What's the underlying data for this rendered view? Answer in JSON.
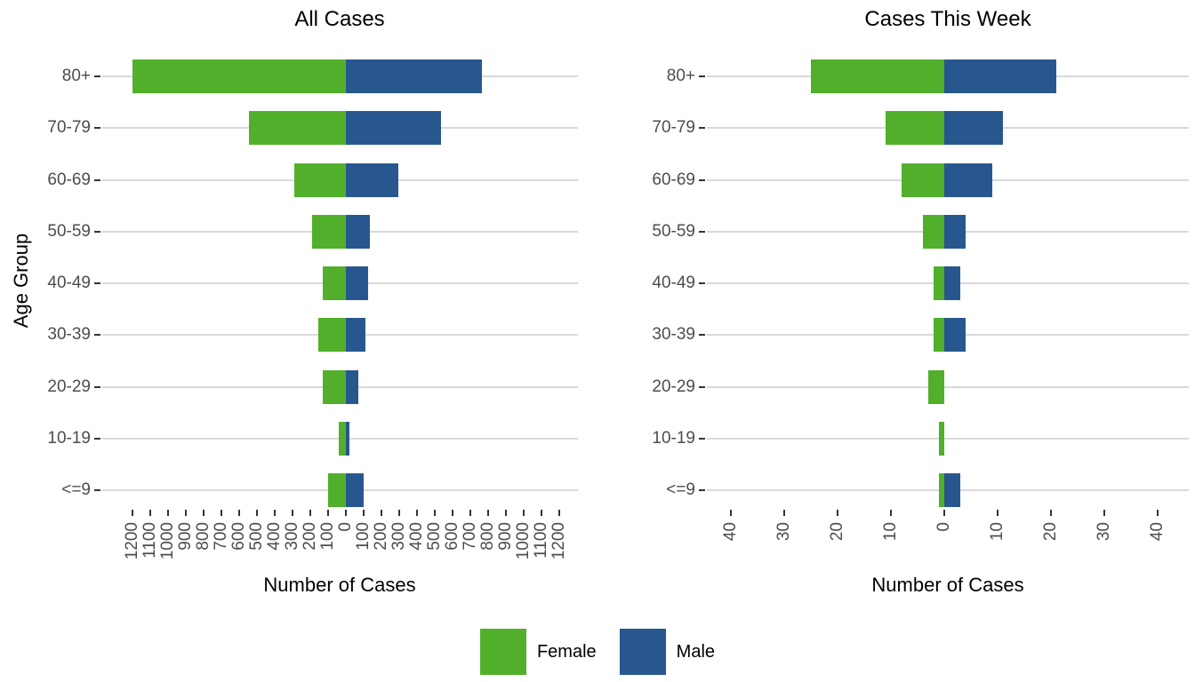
{
  "panel_titles": {
    "left": "All Cases",
    "right": "Cases This Week"
  },
  "axis_titles": {
    "x": "Number of Cases",
    "y": "Age Group"
  },
  "legend": {
    "position": "bottom",
    "items": [
      {
        "label": "Female",
        "color": "#52AF2C"
      },
      {
        "label": "Male",
        "color": "#28578F"
      }
    ]
  },
  "colors": {
    "female": "#52AF2C",
    "male": "#28578F",
    "gridline": "#D9D9D9",
    "tick_mark": "#333333",
    "axis_text": "#4D4D4D",
    "title_text": "#000000",
    "background": "#FFFFFF"
  },
  "chart_data": [
    {
      "type": "bar",
      "variant": "population-pyramid",
      "title": "All Cases",
      "xlabel": "Number of Cases",
      "ylabel": "Age Group",
      "grid": "horizontal-major-only",
      "legend_position": "bottom-shared",
      "categories": [
        "80+",
        "70-79",
        "60-69",
        "50-59",
        "40-49",
        "30-39",
        "20-29",
        "10-19",
        "<=9"
      ],
      "series": [
        {
          "name": "Female",
          "direction": "left",
          "values": [
            1200,
            545,
            290,
            190,
            130,
            155,
            130,
            40,
            100
          ]
        },
        {
          "name": "Male",
          "direction": "right",
          "values": [
            765,
            535,
            295,
            135,
            125,
            110,
            70,
            20,
            100
          ]
        }
      ],
      "xlim": [
        -1250,
        1250
      ],
      "x_tick_values": [
        -1200,
        -1100,
        -1000,
        -900,
        -800,
        -700,
        -600,
        -500,
        -400,
        -300,
        -200,
        -100,
        0,
        100,
        200,
        300,
        400,
        500,
        600,
        700,
        800,
        900,
        1000,
        1100,
        1200
      ],
      "x_tick_labels": [
        "1200",
        "1100",
        "1000",
        "900",
        "800",
        "700",
        "600",
        "500",
        "400",
        "300",
        "200",
        "100",
        "0",
        "100",
        "200",
        "300",
        "400",
        "500",
        "600",
        "700",
        "800",
        "900",
        "1000",
        "1100",
        "1200"
      ]
    },
    {
      "type": "bar",
      "variant": "population-pyramid",
      "title": "Cases This Week",
      "xlabel": "Number of Cases",
      "ylabel": "Age Group",
      "grid": "horizontal-major-only",
      "legend_position": "bottom-shared",
      "categories": [
        "80+",
        "70-79",
        "60-69",
        "50-59",
        "40-49",
        "30-39",
        "20-29",
        "10-19",
        "<=9"
      ],
      "series": [
        {
          "name": "Female",
          "direction": "left",
          "values": [
            25,
            11,
            8,
            4,
            2,
            2,
            3,
            1,
            1
          ]
        },
        {
          "name": "Male",
          "direction": "right",
          "values": [
            21,
            11,
            9,
            4,
            3,
            4,
            0,
            0,
            3
          ]
        }
      ],
      "xlim": [
        -45,
        45
      ],
      "x_tick_values": [
        -40,
        -30,
        -20,
        -10,
        0,
        10,
        20,
        30,
        40
      ],
      "x_tick_labels": [
        "40",
        "30",
        "20",
        "10",
        "0",
        "10",
        "20",
        "30",
        "40"
      ]
    }
  ]
}
